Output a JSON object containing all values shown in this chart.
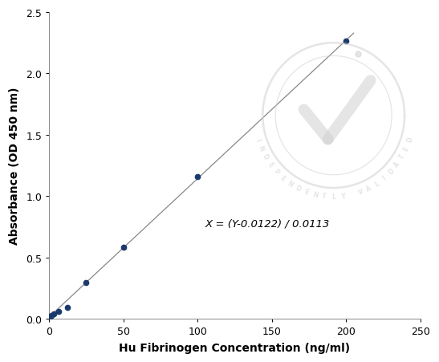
{
  "x_points": [
    0,
    0.78,
    1.56,
    3.125,
    6.25,
    12.5,
    25,
    50,
    100,
    200
  ],
  "y_points": [
    0.012,
    0.018,
    0.027,
    0.038,
    0.058,
    0.088,
    0.294,
    0.585,
    1.16,
    2.265
  ],
  "equation": "X = (Y-0.0122) / 0.0113",
  "xlabel": "Hu Fibrinogen Concentration (ng/ml)",
  "ylabel": "Absorbance (OD 450 nm)",
  "xlim": [
    0,
    250
  ],
  "ylim": [
    0,
    2.5
  ],
  "xticks": [
    0,
    50,
    100,
    150,
    200,
    250
  ],
  "yticks": [
    0.0,
    0.5,
    1.0,
    1.5,
    2.0,
    2.5
  ],
  "dot_color": "#1a3a6b",
  "line_color": "#888888",
  "background_color": "#ffffff",
  "equation_x": 105,
  "equation_y": 0.78,
  "slope": 0.0113,
  "intercept": 0.0122,
  "watermark_color": "#d0d0d0",
  "watermark_alpha": 0.55
}
